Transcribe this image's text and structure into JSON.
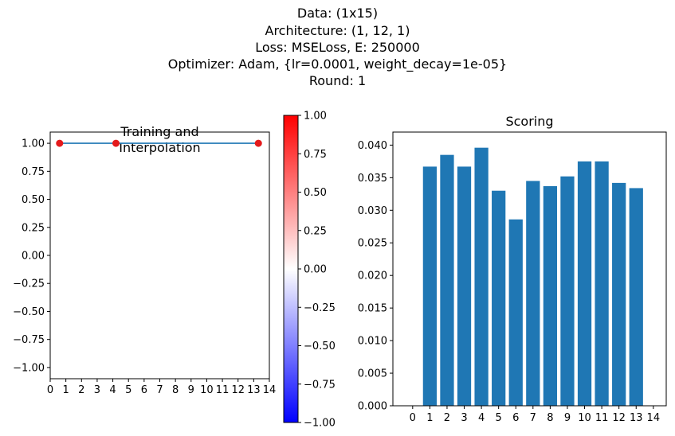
{
  "figure": {
    "suptitle_lines": [
      "Data: (1x15)",
      "Architecture: (1, 12, 1)",
      "Loss: MSELoss, E: 250000",
      "Optimizer: Adam, {lr=0.0001, weight_decay=1e-05}",
      "Round: 1"
    ]
  },
  "chart_data": [
    {
      "type": "line",
      "title": "Training and\n Interpolation",
      "xlim": [
        0,
        14
      ],
      "ylim": [
        -1.1,
        1.1
      ],
      "x_ticks": [
        "0",
        "1",
        "2",
        "3",
        "4",
        "5",
        "6",
        "7",
        "8",
        "9",
        "10",
        "11",
        "12",
        "13",
        "14"
      ],
      "y_ticks": [
        "1.00",
        "0.75",
        "0.50",
        "0.25",
        "0.00",
        "−0.25",
        "−0.50",
        "−0.75",
        "−1.00"
      ],
      "series": [
        {
          "kind": "line",
          "color": "#1f77b4",
          "x": [
            0.5,
            13.3
          ],
          "y": [
            1.0,
            1.0
          ]
        },
        {
          "kind": "scatter",
          "color": "#e41a1c",
          "x": [
            0.6,
            4.2,
            13.3
          ],
          "y": [
            1.0,
            1.0,
            1.0
          ]
        }
      ]
    },
    {
      "type": "colorbar",
      "colormap": "bwr",
      "range": [
        -1.0,
        1.0
      ],
      "ticks": [
        "1.00",
        "0.75",
        "0.50",
        "0.25",
        "0.00",
        "−0.25",
        "−0.50",
        "−0.75",
        "−1.00"
      ],
      "colors": {
        "low": "#0000ff",
        "mid": "#ffffff",
        "high": "#ff0000"
      }
    },
    {
      "type": "bar",
      "title": "Scoring",
      "color": "#1f77b4",
      "categories": [
        "0",
        "1",
        "2",
        "3",
        "4",
        "5",
        "6",
        "7",
        "8",
        "9",
        "10",
        "11",
        "12",
        "13",
        "14"
      ],
      "values": [
        0,
        0.0367,
        0.0385,
        0.0367,
        0.0396,
        0.033,
        0.0286,
        0.0345,
        0.0337,
        0.0352,
        0.0375,
        0.0375,
        0.0342,
        0.0334,
        0
      ],
      "ylim": [
        0,
        0.042
      ],
      "y_ticks": [
        "0.000",
        "0.005",
        "0.010",
        "0.015",
        "0.020",
        "0.025",
        "0.030",
        "0.035",
        "0.040"
      ]
    }
  ]
}
